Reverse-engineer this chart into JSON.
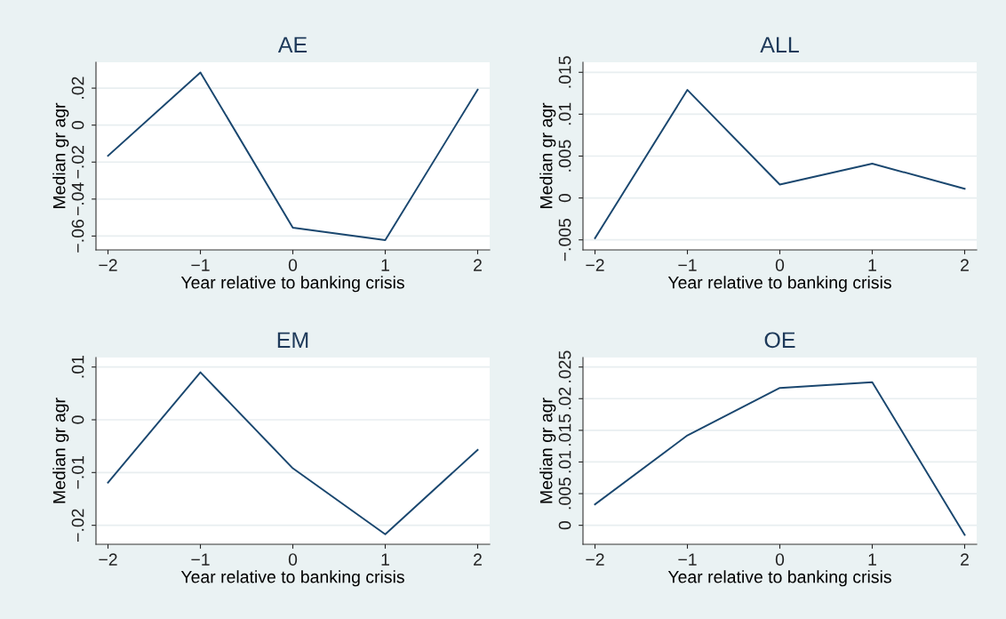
{
  "chart_data": [
    {
      "type": "line",
      "title": "AE",
      "xlabel": "Year relative to banking crisis",
      "ylabel": "Median gr agr",
      "x": [
        -2,
        -1,
        0,
        1,
        2
      ],
      "series": [
        {
          "color": "#1a476f",
          "values": [
            -0.0166,
            0.0285,
            -0.0555,
            -0.0622,
            0.0192
          ]
        }
      ],
      "xlim": [
        -2.13,
        2.13
      ],
      "ylim": [
        -0.0675,
        0.034
      ],
      "xticks": [
        -2,
        -1,
        0,
        1,
        2
      ],
      "yticks": [
        {
          "value": -0.06,
          "label": "−.06"
        },
        {
          "value": -0.04,
          "label": "−.04"
        },
        {
          "value": -0.02,
          "label": "−.02"
        },
        0,
        {
          "value": 0.02,
          "label": ".02"
        }
      ],
      "grid": "y"
    },
    {
      "type": "line",
      "title": "ALL",
      "xlabel": "Year relative to banking crisis",
      "ylabel": "Median gr agr",
      "x": [
        -2,
        -1,
        0,
        1,
        2
      ],
      "series": [
        {
          "color": "#1a476f",
          "values": [
            -0.0048,
            0.0129,
            0.0016,
            0.0041,
            0.0011
          ]
        }
      ],
      "xlim": [
        -2.13,
        2.13
      ],
      "ylim": [
        -0.0062,
        0.0162
      ],
      "xticks": [
        -2,
        -1,
        0,
        1,
        2
      ],
      "yticks": [
        {
          "value": -0.005,
          "label": "−.005"
        },
        0,
        {
          "value": 0.005,
          "label": ".005"
        },
        {
          "value": 0.01,
          "label": ".01"
        },
        {
          "value": 0.015,
          "label": ".015"
        }
      ],
      "grid": "y"
    },
    {
      "type": "line",
      "title": "EM",
      "xlabel": "Year relative to banking crisis",
      "ylabel": "Median gr agr",
      "x": [
        -2,
        -1,
        0,
        1,
        2
      ],
      "series": [
        {
          "color": "#1a476f",
          "values": [
            -0.0119,
            0.009,
            -0.0092,
            -0.0217,
            -0.0057
          ]
        }
      ],
      "xlim": [
        -2.13,
        2.13
      ],
      "ylim": [
        -0.0236,
        0.0118
      ],
      "xticks": [
        -2,
        -1,
        0,
        1,
        2
      ],
      "yticks": [
        {
          "value": -0.02,
          "label": "−.02"
        },
        {
          "value": -0.01,
          "label": "−.01"
        },
        0,
        {
          "value": 0.01,
          "label": ".01"
        }
      ],
      "grid": "y"
    },
    {
      "type": "line",
      "title": "OE",
      "xlabel": "Year relative to banking crisis",
      "ylabel": "Median gr agr",
      "x": [
        -2,
        -1,
        0,
        1,
        2
      ],
      "series": [
        {
          "color": "#1a476f",
          "values": [
            0.0033,
            0.0142,
            0.0217,
            0.0226,
            -0.0015
          ]
        }
      ],
      "xlim": [
        -2.13,
        2.13
      ],
      "ylim": [
        -0.003,
        0.0265
      ],
      "xticks": [
        -2,
        -1,
        0,
        1,
        2
      ],
      "yticks": [
        0,
        {
          "value": 0.005,
          "label": ".005"
        },
        {
          "value": 0.01,
          "label": ".01"
        },
        {
          "value": 0.015,
          "label": ".015"
        },
        {
          "value": 0.02,
          "label": ".02"
        },
        {
          "value": 0.025,
          "label": ".025"
        }
      ],
      "grid": "y"
    }
  ]
}
